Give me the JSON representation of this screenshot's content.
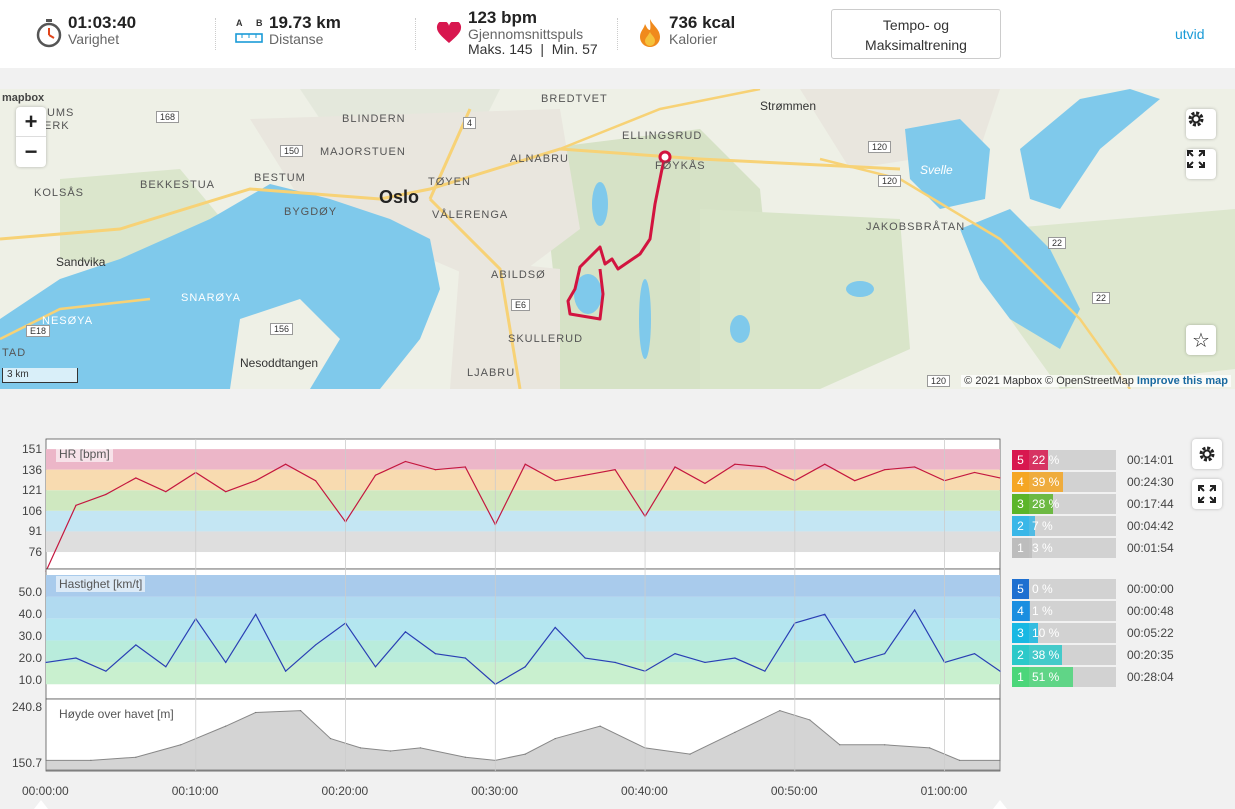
{
  "header": {
    "duration": {
      "value": "01:03:40",
      "label": "Varighet"
    },
    "distance": {
      "value": "19.73 km",
      "label": "Distanse",
      "a": "A",
      "b": "B"
    },
    "heartrate": {
      "value": "123 bpm",
      "label": "Gjennomsnittspuls",
      "sub": "Maks. 145  |  Min. 57"
    },
    "calories": {
      "value": "736 kcal",
      "label": "Kalorier"
    },
    "training_button": "Tempo- og Maksimaltrening",
    "expand_link": "utvid"
  },
  "map": {
    "places": [
      "BREDTVET",
      "Strømmen",
      "RUMS",
      "ERK",
      "BLINDERN",
      "ELLINGSRUD",
      "MAJORSTUEN",
      "ALNABRU",
      "FØYKÅS",
      "BESTUM",
      "KOLSÅS",
      "BEKKESTUA",
      "Oslo",
      "TØYEN",
      "VÅLERENGA",
      "BYGDØY",
      "Svelle",
      "JAKOBSBRÅTAN",
      "Sandvika",
      "ABILDSØ",
      "SNARØYA",
      "NESØYA",
      "SKULLERUD",
      "TAD",
      "Nesoddtangen",
      "LJABRU"
    ],
    "roads": [
      "168",
      "4",
      "120",
      "150",
      "120",
      "22",
      "E6",
      "E18",
      "156",
      "22",
      "120"
    ],
    "scale": "3 km",
    "logo": "mapbox",
    "attribution": "© 2021 Mapbox © OpenStreetMap",
    "improve": "Improve this map",
    "route_color": "#d2143f"
  },
  "hr_zones": [
    {
      "num": "5",
      "pct": "22 %",
      "time": "00:14:01",
      "color": "#d8174f",
      "fraction": 0.22
    },
    {
      "num": "4",
      "pct": "39 %",
      "time": "00:24:30",
      "color": "#f5a623",
      "fraction": 0.39
    },
    {
      "num": "3",
      "pct": "28 %",
      "time": "00:17:44",
      "color": "#5cb52a",
      "fraction": 0.28
    },
    {
      "num": "2",
      "pct": "7 %",
      "time": "00:04:42",
      "color": "#3ab7e8",
      "fraction": 0.07
    },
    {
      "num": "1",
      "pct": "3 %",
      "time": "00:01:54",
      "color": "#bdbdbd",
      "fraction": 0.03
    }
  ],
  "speed_zones": [
    {
      "num": "5",
      "pct": "0 %",
      "time": "00:00:00",
      "color": "#1e6fd0",
      "fraction": 0.0
    },
    {
      "num": "4",
      "pct": "1 %",
      "time": "00:00:48",
      "color": "#1a8ee0",
      "fraction": 0.01
    },
    {
      "num": "3",
      "pct": "10 %",
      "time": "00:05:22",
      "color": "#18b8e3",
      "fraction": 0.1
    },
    {
      "num": "2",
      "pct": "38 %",
      "time": "00:20:35",
      "color": "#2cc9c9",
      "fraction": 0.38
    },
    {
      "num": "1",
      "pct": "51 %",
      "time": "00:28:04",
      "color": "#4cd67a",
      "fraction": 0.51
    }
  ],
  "chart_data": [
    {
      "type": "line",
      "title": "HR [bpm]",
      "y_ticks": [
        "151",
        "136",
        "121",
        "106",
        "91",
        "76"
      ],
      "x": [
        0,
        2,
        4,
        6,
        8,
        10,
        12,
        14,
        16,
        18,
        20,
        22,
        24,
        26,
        28,
        30,
        32,
        34,
        36,
        38,
        40,
        42,
        44,
        46,
        48,
        50,
        52,
        54,
        56,
        58,
        60,
        62,
        63.7
      ],
      "y": [
        62,
        110,
        118,
        130,
        120,
        134,
        120,
        128,
        140,
        128,
        98,
        132,
        142,
        136,
        138,
        96,
        140,
        128,
        132,
        136,
        102,
        138,
        126,
        140,
        138,
        128,
        140,
        128,
        136,
        138,
        128,
        134,
        130
      ],
      "ylim": [
        68,
        154
      ]
    },
    {
      "type": "line",
      "title": "Hastighet [km/t]",
      "y_ticks": [
        "50.0",
        "40.0",
        "30.0",
        "20.0",
        "10.0"
      ],
      "x": [
        0,
        2,
        4,
        6,
        8,
        10,
        12,
        14,
        16,
        18,
        20,
        22,
        24,
        26,
        28,
        30,
        32,
        34,
        36,
        38,
        40,
        42,
        44,
        46,
        48,
        50,
        52,
        54,
        56,
        58,
        60,
        62,
        63.7
      ],
      "y": [
        18,
        20,
        14,
        26,
        16,
        38,
        18,
        40,
        14,
        26,
        36,
        16,
        32,
        22,
        20,
        8,
        16,
        34,
        20,
        18,
        14,
        22,
        18,
        20,
        14,
        36,
        40,
        18,
        22,
        42,
        18,
        22,
        14
      ],
      "ylim": [
        4,
        58
      ]
    },
    {
      "type": "area",
      "title": "Høyde over havet [m]",
      "y_ticks": [
        "240.8",
        "150.7"
      ],
      "x": [
        0,
        3,
        6,
        9,
        12,
        14,
        17,
        19,
        21,
        23,
        25,
        28,
        30,
        32,
        34,
        37,
        40,
        43,
        46,
        49,
        51,
        53,
        56,
        59,
        61,
        63.7
      ],
      "y": [
        155,
        155,
        160,
        180,
        210,
        232,
        235,
        190,
        175,
        170,
        175,
        160,
        155,
        165,
        190,
        210,
        175,
        165,
        200,
        235,
        220,
        180,
        180,
        175,
        155,
        155
      ],
      "ylim": [
        150.7,
        240.8
      ]
    }
  ],
  "x_ticks": [
    "00:00:00",
    "00:10:00",
    "00:20:00",
    "00:30:00",
    "00:40:00",
    "00:50:00",
    "01:00:00"
  ]
}
